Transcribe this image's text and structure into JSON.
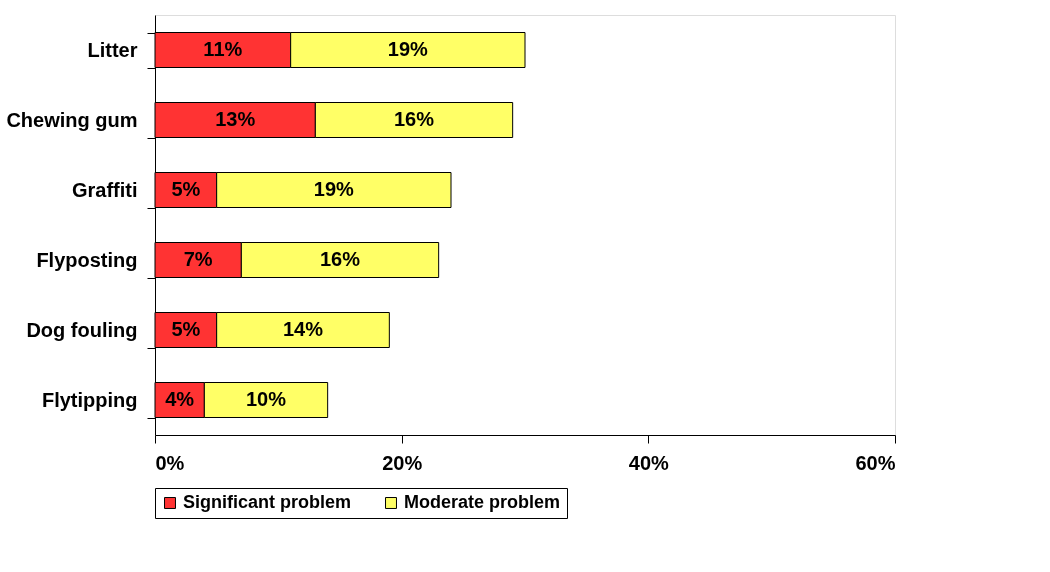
{
  "chart_data": {
    "type": "bar",
    "orientation": "horizontal",
    "stacked": true,
    "categories": [
      "Litter",
      "Chewing gum",
      "Graffiti",
      "Flyposting",
      "Dog fouling",
      "Flytipping"
    ],
    "series": [
      {
        "name": "Significant problem",
        "color": "#ff3333",
        "values": [
          11,
          13,
          5,
          7,
          5,
          4
        ],
        "value_labels": [
          "11%",
          "13%",
          "5%",
          "7%",
          "5%",
          "4%"
        ]
      },
      {
        "name": "Moderate problem",
        "color": "#ffff66",
        "values": [
          19,
          16,
          19,
          16,
          14,
          10
        ],
        "value_labels": [
          "19%",
          "16%",
          "19%",
          "16%",
          "14%",
          "10%"
        ]
      }
    ],
    "xlim": [
      0,
      60
    ],
    "xticks": [
      {
        "value": 0,
        "label": "0%"
      },
      {
        "value": 20,
        "label": "20%"
      },
      {
        "value": 40,
        "label": "40%"
      },
      {
        "value": 60,
        "label": "60%"
      }
    ],
    "grid": false,
    "legend": "bottom"
  }
}
